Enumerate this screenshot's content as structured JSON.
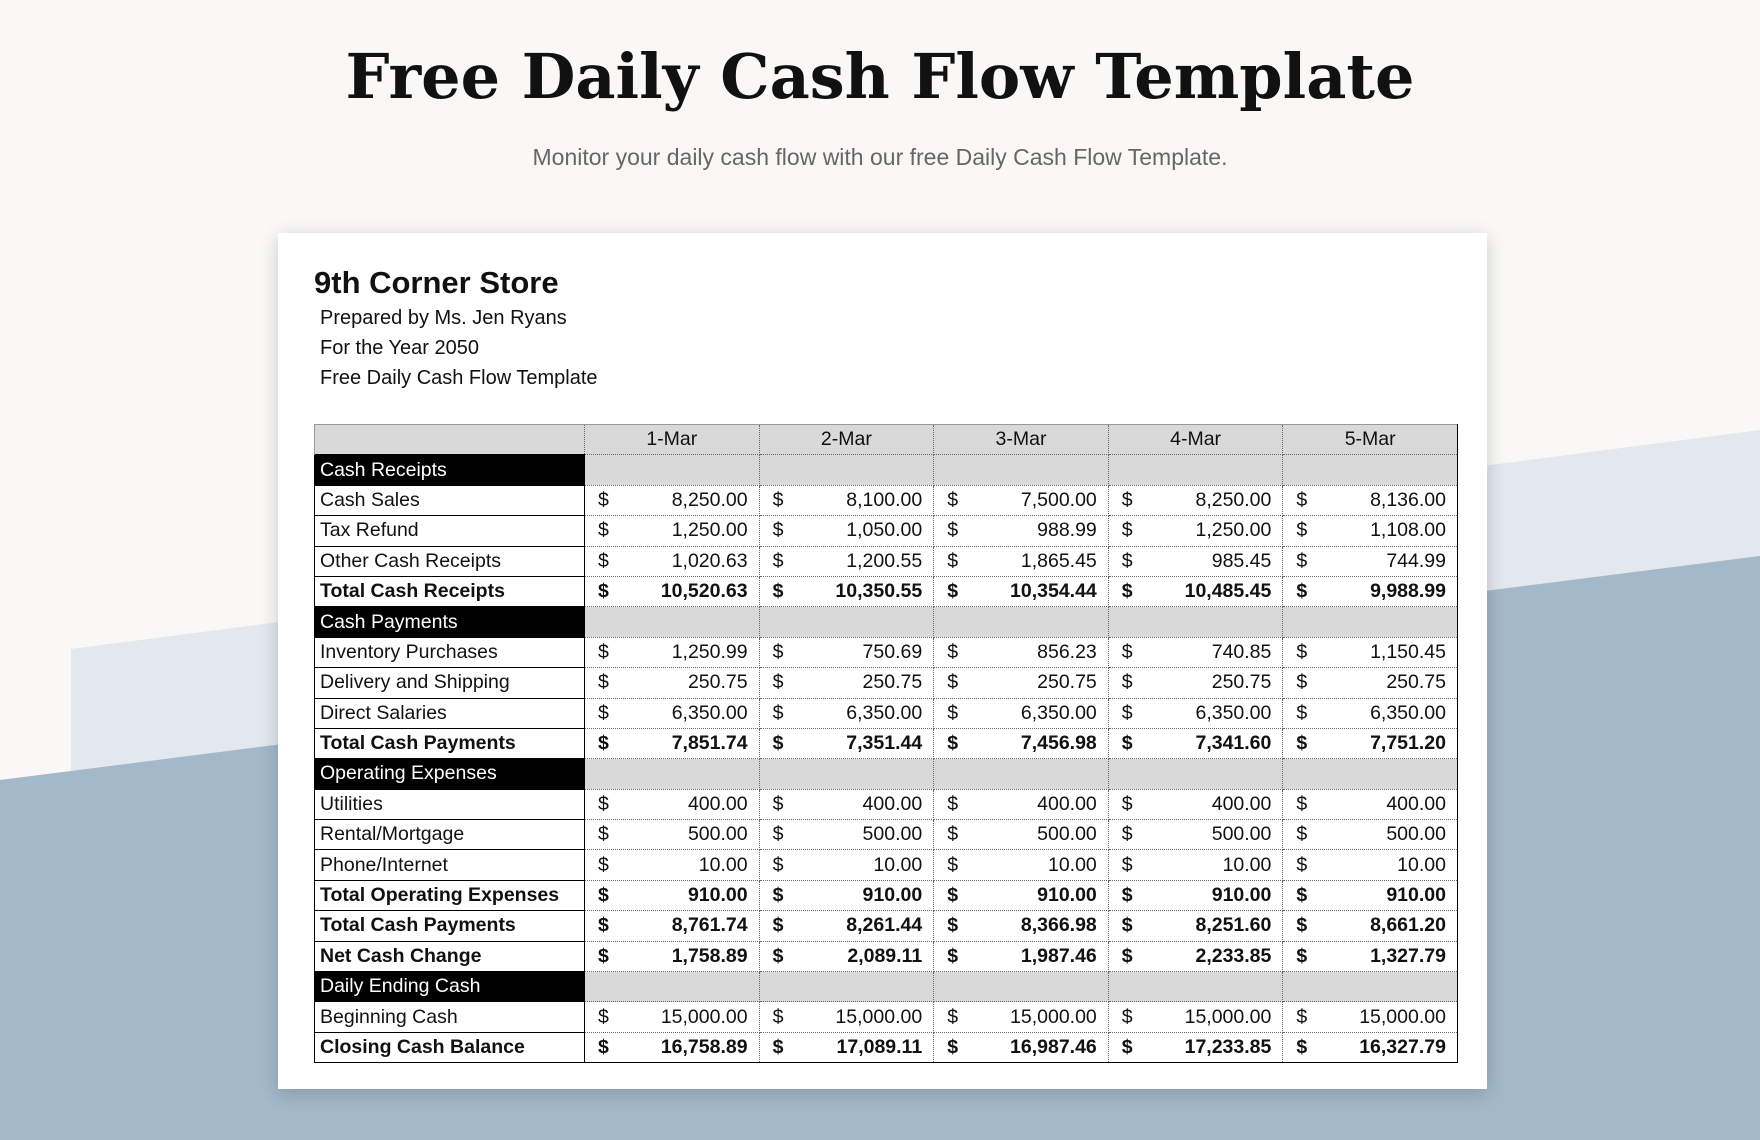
{
  "header": {
    "title": "Free Daily Cash Flow Template",
    "subtitle": "Monitor your daily cash flow with our free Daily Cash Flow Template."
  },
  "sheet": {
    "company": "9th Corner Store",
    "lines": [
      "Prepared by Ms. Jen Ryans",
      "For the Year 2050",
      "Free Daily Cash Flow Template"
    ]
  },
  "table": {
    "currency": "$",
    "columns": [
      "1-Mar",
      "2-Mar",
      "3-Mar",
      "4-Mar",
      "5-Mar"
    ],
    "rows": [
      {
        "label": "Cash Receipts",
        "kind": "section"
      },
      {
        "label": "Cash Sales",
        "kind": "item",
        "values": [
          "8,250.00",
          "8,100.00",
          "7,500.00",
          "8,250.00",
          "8,136.00"
        ]
      },
      {
        "label": "Tax Refund",
        "kind": "item",
        "values": [
          "1,250.00",
          "1,050.00",
          "988.99",
          "1,250.00",
          "1,108.00"
        ]
      },
      {
        "label": "Other Cash Receipts",
        "kind": "item",
        "values": [
          "1,020.63",
          "1,200.55",
          "1,865.45",
          "985.45",
          "744.99"
        ]
      },
      {
        "label": "Total Cash Receipts",
        "kind": "total",
        "values": [
          "10,520.63",
          "10,350.55",
          "10,354.44",
          "10,485.45",
          "9,988.99"
        ]
      },
      {
        "label": "Cash Payments",
        "kind": "section"
      },
      {
        "label": "Inventory Purchases",
        "kind": "item",
        "values": [
          "1,250.99",
          "750.69",
          "856.23",
          "740.85",
          "1,150.45"
        ]
      },
      {
        "label": "Delivery and Shipping",
        "kind": "item",
        "values": [
          "250.75",
          "250.75",
          "250.75",
          "250.75",
          "250.75"
        ]
      },
      {
        "label": "Direct Salaries",
        "kind": "item",
        "values": [
          "6,350.00",
          "6,350.00",
          "6,350.00",
          "6,350.00",
          "6,350.00"
        ]
      },
      {
        "label": "Total Cash Payments",
        "kind": "total",
        "values": [
          "7,851.74",
          "7,351.44",
          "7,456.98",
          "7,341.60",
          "7,751.20"
        ]
      },
      {
        "label": "Operating Expenses",
        "kind": "section"
      },
      {
        "label": "Utilities",
        "kind": "item",
        "values": [
          "400.00",
          "400.00",
          "400.00",
          "400.00",
          "400.00"
        ]
      },
      {
        "label": "Rental/Mortgage",
        "kind": "item",
        "values": [
          "500.00",
          "500.00",
          "500.00",
          "500.00",
          "500.00"
        ]
      },
      {
        "label": "Phone/Internet",
        "kind": "item",
        "values": [
          "10.00",
          "10.00",
          "10.00",
          "10.00",
          "10.00"
        ]
      },
      {
        "label": "Total Operating Expenses",
        "kind": "total",
        "values": [
          "910.00",
          "910.00",
          "910.00",
          "910.00",
          "910.00"
        ]
      },
      {
        "label": "Total Cash Payments",
        "kind": "total",
        "values": [
          "8,761.74",
          "8,261.44",
          "8,366.98",
          "8,251.60",
          "8,661.20"
        ]
      },
      {
        "label": "Net Cash Change",
        "kind": "total",
        "values": [
          "1,758.89",
          "2,089.11",
          "1,987.46",
          "2,233.85",
          "1,327.79"
        ]
      },
      {
        "label": "Daily Ending Cash",
        "kind": "section"
      },
      {
        "label": "Beginning Cash",
        "kind": "item",
        "values": [
          "15,000.00",
          "15,000.00",
          "15,000.00",
          "15,000.00",
          "15,000.00"
        ]
      },
      {
        "label": "Closing Cash Balance",
        "kind": "total",
        "values": [
          "16,758.89",
          "17,089.11",
          "16,987.46",
          "17,233.85",
          "16,327.79"
        ]
      }
    ]
  }
}
